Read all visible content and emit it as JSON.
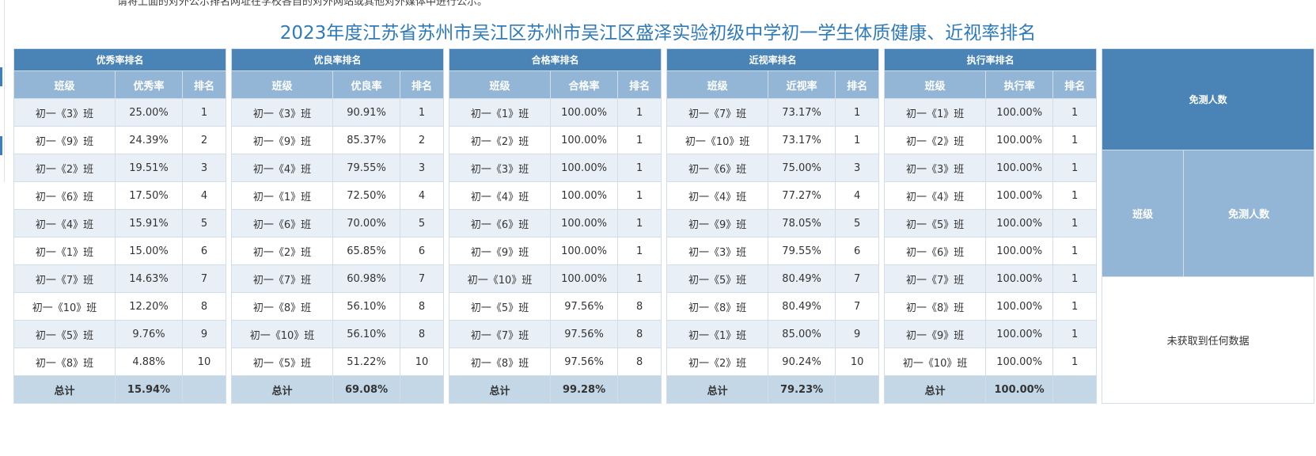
{
  "notice": "请将上面的对外公示排名网址在学校各自的对外网站或其他对外媒体中进行公示。",
  "title": "2023年度江苏省苏州市吴江区苏州市吴江区盛泽实验初级中学初一学生体质健康、近视率排名",
  "tables": [
    {
      "title": "优秀率排名",
      "headers": [
        "班级",
        "优秀率",
        "排名"
      ],
      "rows": [
        [
          "初一《3》班",
          "25.00%",
          1
        ],
        [
          "初一《9》班",
          "24.39%",
          2
        ],
        [
          "初一《2》班",
          "19.51%",
          3
        ],
        [
          "初一《6》班",
          "17.50%",
          4
        ],
        [
          "初一《4》班",
          "15.91%",
          5
        ],
        [
          "初一《1》班",
          "15.00%",
          6
        ],
        [
          "初一《7》班",
          "14.63%",
          7
        ],
        [
          "初一《10》班",
          "12.20%",
          8
        ],
        [
          "初一《5》班",
          "9.76%",
          9
        ],
        [
          "初一《8》班",
          "4.88%",
          10
        ]
      ],
      "total": [
        "总计",
        "15.94%"
      ]
    },
    {
      "title": "优良率排名",
      "headers": [
        "班级",
        "优良率",
        "排名"
      ],
      "rows": [
        [
          "初一《3》班",
          "90.91%",
          1
        ],
        [
          "初一《9》班",
          "85.37%",
          2
        ],
        [
          "初一《4》班",
          "79.55%",
          3
        ],
        [
          "初一《1》班",
          "72.50%",
          4
        ],
        [
          "初一《6》班",
          "70.00%",
          5
        ],
        [
          "初一《2》班",
          "65.85%",
          6
        ],
        [
          "初一《7》班",
          "60.98%",
          7
        ],
        [
          "初一《8》班",
          "56.10%",
          8
        ],
        [
          "初一《10》班",
          "56.10%",
          8
        ],
        [
          "初一《5》班",
          "51.22%",
          10
        ]
      ],
      "total": [
        "总计",
        "69.08%"
      ]
    },
    {
      "title": "合格率排名",
      "headers": [
        "班级",
        "合格率",
        "排名"
      ],
      "rows": [
        [
          "初一《1》班",
          "100.00%",
          1
        ],
        [
          "初一《2》班",
          "100.00%",
          1
        ],
        [
          "初一《3》班",
          "100.00%",
          1
        ],
        [
          "初一《4》班",
          "100.00%",
          1
        ],
        [
          "初一《6》班",
          "100.00%",
          1
        ],
        [
          "初一《9》班",
          "100.00%",
          1
        ],
        [
          "初一《10》班",
          "100.00%",
          1
        ],
        [
          "初一《5》班",
          "97.56%",
          8
        ],
        [
          "初一《7》班",
          "97.56%",
          8
        ],
        [
          "初一《8》班",
          "97.56%",
          8
        ]
      ],
      "total": [
        "总计",
        "99.28%"
      ]
    },
    {
      "title": "近视率排名",
      "headers": [
        "班级",
        "近视率",
        "排名"
      ],
      "rows": [
        [
          "初一《7》班",
          "73.17%",
          1
        ],
        [
          "初一《10》班",
          "73.17%",
          1
        ],
        [
          "初一《6》班",
          "75.00%",
          3
        ],
        [
          "初一《4》班",
          "77.27%",
          4
        ],
        [
          "初一《9》班",
          "78.05%",
          5
        ],
        [
          "初一《3》班",
          "79.55%",
          6
        ],
        [
          "初一《5》班",
          "80.49%",
          7
        ],
        [
          "初一《8》班",
          "80.49%",
          7
        ],
        [
          "初一《1》班",
          "85.00%",
          9
        ],
        [
          "初一《2》班",
          "90.24%",
          10
        ]
      ],
      "total": [
        "总计",
        "79.23%"
      ]
    },
    {
      "title": "执行率排名",
      "headers": [
        "班级",
        "执行率",
        "排名"
      ],
      "rows": [
        [
          "初一《1》班",
          "100.00%",
          1
        ],
        [
          "初一《2》班",
          "100.00%",
          1
        ],
        [
          "初一《3》班",
          "100.00%",
          1
        ],
        [
          "初一《4》班",
          "100.00%",
          1
        ],
        [
          "初一《5》班",
          "100.00%",
          1
        ],
        [
          "初一《6》班",
          "100.00%",
          1
        ],
        [
          "初一《7》班",
          "100.00%",
          1
        ],
        [
          "初一《8》班",
          "100.00%",
          1
        ],
        [
          "初一《9》班",
          "100.00%",
          1
        ],
        [
          "初一《10》班",
          "100.00%",
          1
        ]
      ],
      "total": [
        "总计",
        "100.00%"
      ]
    },
    {
      "title": "免测人数",
      "headers": [
        "班级",
        "免测人数"
      ],
      "empty": "未获取到任何数据"
    }
  ]
}
